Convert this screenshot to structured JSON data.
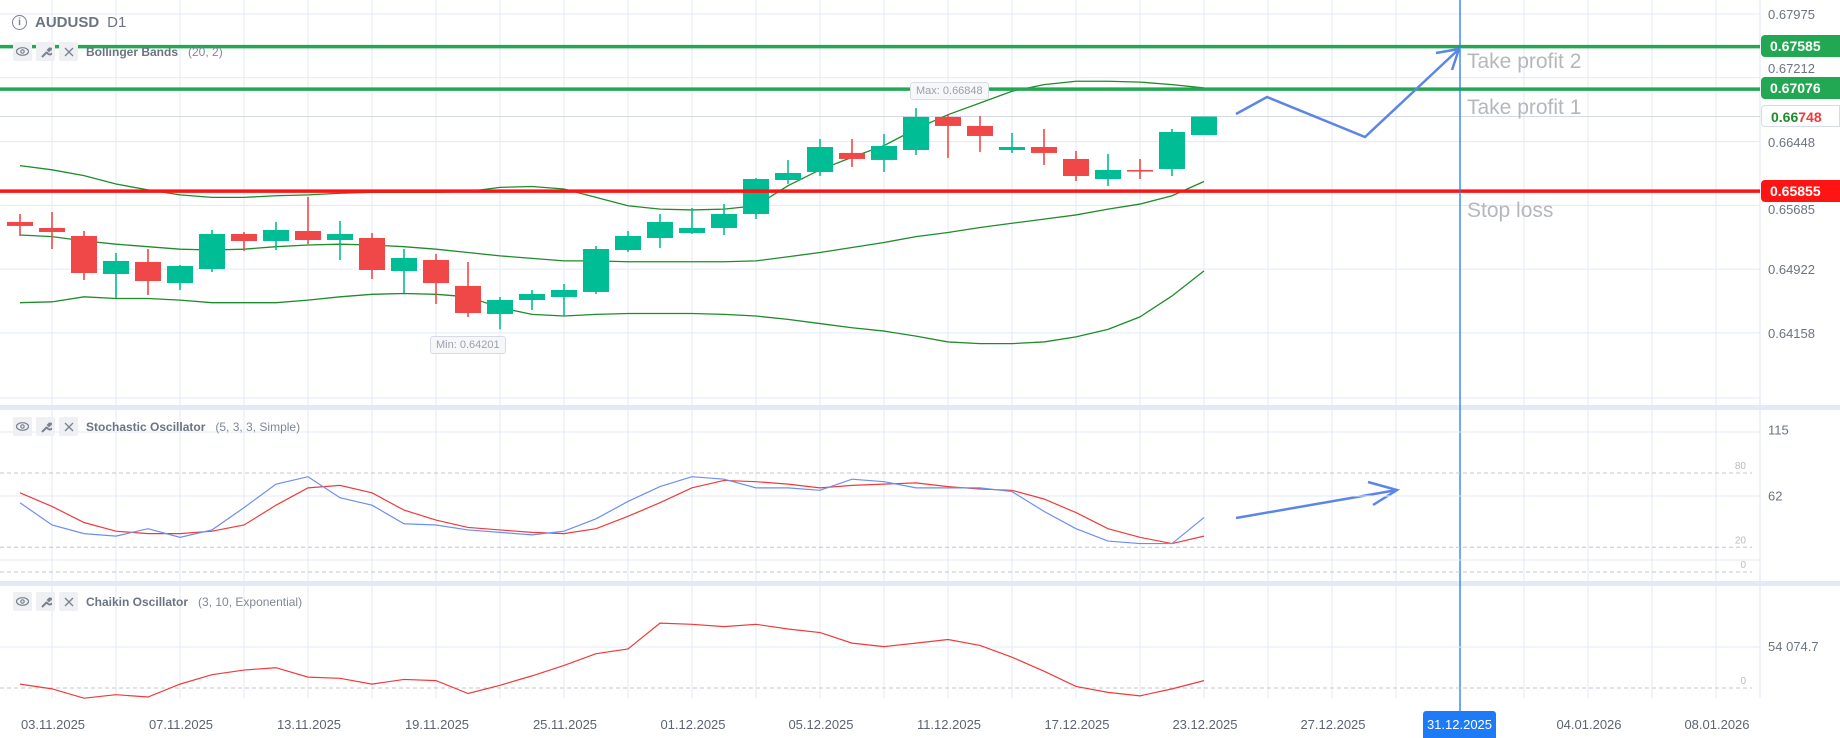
{
  "header": {
    "symbol": "AUDUSD",
    "timeframe": "D1",
    "info_icon": "info-icon"
  },
  "indicators": [
    {
      "name": "Bollinger Bands",
      "params": "(20, 2)"
    },
    {
      "name": "Stochastic Oscillator",
      "params": "(5, 3, 3, Simple)"
    },
    {
      "name": "Chaikin Oscillator",
      "params": "(3, 10, Exponential)"
    }
  ],
  "levels": {
    "take_profit_2": {
      "label": "Take profit 2",
      "price": "0.67585",
      "value": 0.67585,
      "color": "#22a852"
    },
    "take_profit_1": {
      "label": "Take profit 1",
      "price": "0.67076",
      "value": 0.67076,
      "color": "#22a852"
    },
    "stop_loss": {
      "label": "Stop loss",
      "price": "0.65855",
      "value": 0.65855,
      "color": "#ff1414"
    }
  },
  "current_price": {
    "prefix": "0.66",
    "suffix": "748",
    "value": 0.66748
  },
  "min_label": "Min: 0.64201",
  "max_label": "Max: 0.66848",
  "highlighted_date": "31.12.2025",
  "colors": {
    "up": "#00bd96",
    "down": "#f04848",
    "band": "#1e8c2a",
    "stoch_k": "#6d8ef0",
    "stoch_d": "#f03a3a",
    "chaikin": "#f03a3a",
    "drawing": "#5b86e5",
    "grid": "#e3e9f6"
  },
  "chart_data": [
    {
      "type": "candlestick",
      "title": "AUDUSD D1",
      "y_ticks": [
        "0.67975",
        "0.67212",
        "0.66448",
        "0.65685",
        "0.64922",
        "0.64158"
      ],
      "y_tick_values": [
        0.67975,
        0.67212,
        0.66448,
        0.65685,
        0.64922,
        0.64158
      ],
      "x_ticks": [
        "03.11.2025",
        "07.11.2025",
        "13.11.2025",
        "19.11.2025",
        "25.11.2025",
        "01.12.2025",
        "05.12.2025",
        "11.12.2025",
        "17.12.2025",
        "23.12.2025",
        "27.12.2025",
        "31.12.2025",
        "04.01.2026",
        "08.01.2026"
      ],
      "ohlc": [
        [
          0.65486,
          0.65581,
          0.65318,
          0.65438
        ],
        [
          0.65414,
          0.65605,
          0.65162,
          0.65366
        ],
        [
          0.65318,
          0.65378,
          0.64791,
          0.64875
        ],
        [
          0.64863,
          0.65115,
          0.64576,
          0.65019
        ],
        [
          0.65007,
          0.65162,
          0.64612,
          0.64779
        ],
        [
          0.64755,
          0.64971,
          0.64672,
          0.64959
        ],
        [
          0.64923,
          0.6539,
          0.64887,
          0.65342
        ],
        [
          0.65342,
          0.65366,
          0.65139,
          0.65258
        ],
        [
          0.65258,
          0.65486,
          0.6515,
          0.6539
        ],
        [
          0.65378,
          0.65785,
          0.65222,
          0.6527
        ],
        [
          0.6527,
          0.65498,
          0.65031,
          0.65342
        ],
        [
          0.65294,
          0.65354,
          0.64803,
          0.64911
        ],
        [
          0.64899,
          0.65162,
          0.64636,
          0.65055
        ],
        [
          0.65031,
          0.65103,
          0.64504,
          0.64755
        ],
        [
          0.6472,
          0.65007,
          0.64348,
          0.64396
        ],
        [
          0.64384,
          0.64588,
          0.64201,
          0.64552
        ],
        [
          0.64552,
          0.64672,
          0.64432,
          0.64624
        ],
        [
          0.64588,
          0.64744,
          0.6436,
          0.64672
        ],
        [
          0.64648,
          0.65198,
          0.64624,
          0.65162
        ],
        [
          0.6515,
          0.65378,
          0.65127,
          0.65318
        ],
        [
          0.65294,
          0.65581,
          0.65174,
          0.65486
        ],
        [
          0.65354,
          0.65653,
          0.65342,
          0.65414
        ],
        [
          0.65414,
          0.65701,
          0.6533,
          0.65581
        ],
        [
          0.65581,
          0.66012,
          0.65522,
          0.66
        ],
        [
          0.65988,
          0.66228,
          0.65941,
          0.66072
        ],
        [
          0.66084,
          0.66479,
          0.66036,
          0.66383
        ],
        [
          0.66312,
          0.66479,
          0.66144,
          0.6624
        ],
        [
          0.66228,
          0.66539,
          0.66084,
          0.66395
        ],
        [
          0.66347,
          0.66848,
          0.66288,
          0.66743
        ],
        [
          0.66743,
          0.66778,
          0.66252,
          0.66635
        ],
        [
          0.66635,
          0.66754,
          0.66324,
          0.66515
        ],
        [
          0.66347,
          0.66551,
          0.66312,
          0.66383
        ],
        [
          0.66383,
          0.66599,
          0.66168,
          0.66312
        ],
        [
          0.6624,
          0.66336,
          0.65976,
          0.66036
        ],
        [
          0.66,
          0.663,
          0.65917,
          0.66108
        ],
        [
          0.66108,
          0.6624,
          0.66,
          0.66096
        ],
        [
          0.6612,
          0.66599,
          0.66036,
          0.66563
        ],
        [
          0.66527,
          0.66748,
          0.66527,
          0.66748
        ]
      ],
      "bollinger": {
        "upper": [
          0.6616,
          0.6611,
          0.6604,
          0.6594,
          0.6587,
          0.6581,
          0.6578,
          0.6578,
          0.658,
          0.6581,
          0.6583,
          0.6584,
          0.6584,
          0.6584,
          0.6585,
          0.659,
          0.6591,
          0.6588,
          0.6578,
          0.6568,
          0.6564,
          0.6563,
          0.6564,
          0.6568,
          0.6592,
          0.6611,
          0.6626,
          0.664,
          0.666,
          0.6677,
          0.6691,
          0.6705,
          0.6713,
          0.6717,
          0.6717,
          0.6716,
          0.6713,
          0.6709
        ],
        "middle": [
          0.6533,
          0.6531,
          0.6526,
          0.6522,
          0.6519,
          0.6516,
          0.6515,
          0.6516,
          0.6519,
          0.6521,
          0.6522,
          0.6521,
          0.6519,
          0.6516,
          0.6512,
          0.6508,
          0.6505,
          0.6502,
          0.6502,
          0.6501,
          0.6501,
          0.6501,
          0.6501,
          0.6502,
          0.6507,
          0.6512,
          0.6518,
          0.6524,
          0.6531,
          0.6536,
          0.6542,
          0.6547,
          0.6552,
          0.6557,
          0.6564,
          0.657,
          0.658,
          0.6597
        ],
        "lower": [
          0.6452,
          0.6453,
          0.6459,
          0.6457,
          0.6457,
          0.6455,
          0.6452,
          0.6452,
          0.6452,
          0.6455,
          0.6459,
          0.6462,
          0.6463,
          0.6462,
          0.6459,
          0.6446,
          0.6438,
          0.6436,
          0.6438,
          0.6439,
          0.6439,
          0.6439,
          0.6438,
          0.6436,
          0.6432,
          0.6427,
          0.6422,
          0.6418,
          0.6412,
          0.6405,
          0.6403,
          0.6403,
          0.6405,
          0.6411,
          0.642,
          0.6435,
          0.646,
          0.649
        ]
      }
    },
    {
      "type": "line",
      "title": "Stochastic Oscillator",
      "y_ticks": [
        "115",
        "62"
      ],
      "y_tick_values": [
        115,
        62
      ],
      "levels": [
        "80",
        "20",
        "0"
      ],
      "level_values": [
        80,
        20,
        0
      ],
      "series": [
        {
          "name": "%K",
          "values": [
            56,
            38,
            31,
            29,
            35,
            28,
            34,
            52,
            71,
            77,
            60,
            54,
            39,
            38,
            34,
            32,
            30,
            33,
            43,
            57,
            69,
            77,
            75,
            68,
            68,
            66,
            75,
            73,
            68,
            68,
            68,
            65,
            49,
            35,
            25,
            23,
            23,
            44
          ]
        },
        {
          "name": "%D",
          "values": [
            64,
            53,
            40,
            33,
            31,
            31,
            33,
            38,
            54,
            68,
            70,
            64,
            50,
            42,
            36,
            34,
            32,
            31,
            35,
            45,
            56,
            68,
            74,
            73,
            71,
            68,
            70,
            71,
            72,
            69,
            67,
            66,
            59,
            48,
            35,
            28,
            23,
            29
          ]
        }
      ]
    },
    {
      "type": "line",
      "title": "Chaikin Oscillator",
      "y_ticks": [
        "54 074.7"
      ],
      "y_tick_values": [
        54074.7
      ],
      "levels": [
        "0"
      ],
      "level_values": [
        0
      ],
      "series": [
        {
          "name": "Chaikin",
          "values": [
            5000,
            -1100,
            -13100,
            -8600,
            -11600,
            5000,
            17100,
            23100,
            26100,
            14000,
            12500,
            5000,
            11000,
            9500,
            -7100,
            3500,
            15600,
            29100,
            44200,
            50300,
            83500,
            82000,
            79000,
            82000,
            76000,
            71400,
            57800,
            53300,
            57800,
            62400,
            54800,
            39700,
            21600,
            2000,
            -5600,
            -10100,
            -1100,
            9500
          ]
        }
      ]
    }
  ]
}
